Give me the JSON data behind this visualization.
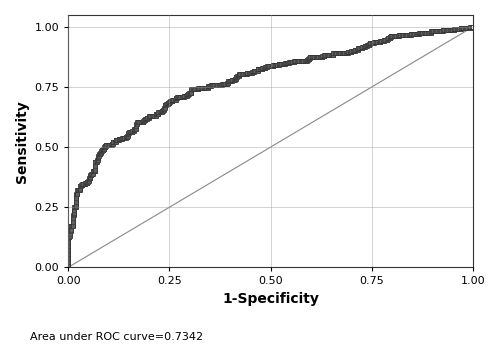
{
  "auc": 0.7342,
  "xlabel": "1-Specificity",
  "ylabel": "Sensitivity",
  "annotation": "Area under ROC curve=0.7342",
  "xlim": [
    0.0,
    1.0
  ],
  "ylim": [
    0.0,
    1.05
  ],
  "xticks": [
    0.0,
    0.25,
    0.5,
    0.75,
    1.0
  ],
  "yticks": [
    0.0,
    0.25,
    0.5,
    0.75,
    1.0
  ],
  "roc_color": "#1a1a1a",
  "diag_color": "#888888",
  "markersize": 2.2,
  "linewidth": 0.7,
  "background_color": "#ffffff",
  "grid_color": "#999999"
}
